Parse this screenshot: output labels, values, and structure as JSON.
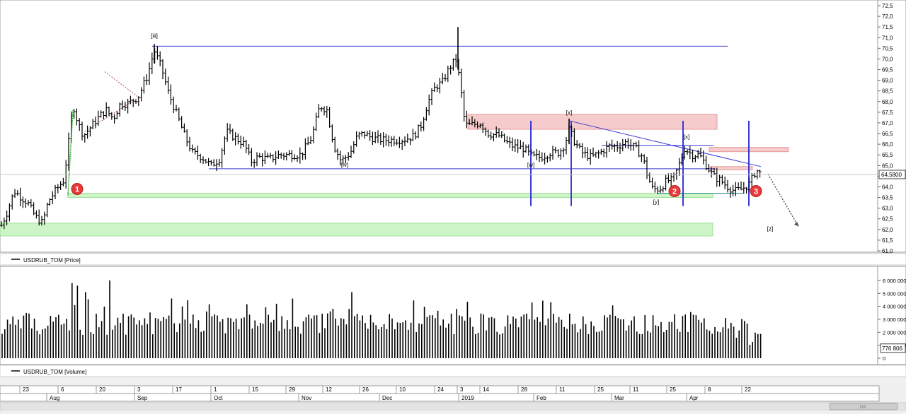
{
  "chart_data": {
    "type": "bar",
    "price_panel": {
      "series_label": "USDRUB_TOM [Price]",
      "y_ticks": [
        "72,5",
        "72,0",
        "71,5",
        "71,0",
        "70,5",
        "70,0",
        "69,5",
        "69,0",
        "68,5",
        "68,0",
        "67,5",
        "67,0",
        "66,5",
        "66,0",
        "65,5",
        "65,0",
        "64,5",
        "64,0",
        "63,5",
        "63,0",
        "62,5",
        "62,0",
        "61,5",
        "61,0"
      ],
      "ylim": [
        61.0,
        72.5
      ],
      "last_price_label": "64,5800",
      "last_price": 64.58,
      "wave_labels": [
        {
          "text": "[iii]",
          "x": 218,
          "price": 71.0
        },
        {
          "text": "[iv]",
          "x": 487,
          "price": 64.95
        },
        {
          "text": "[w]",
          "x": 750,
          "price": 64.95
        },
        {
          "text": "[x]",
          "x": 804,
          "price": 67.4
        },
        {
          "text": "[x]",
          "x": 970,
          "price": 66.25
        },
        {
          "text": "[y]",
          "x": 927,
          "price": 63.2
        },
        {
          "text": "[z]",
          "x": 1088,
          "price": 61.95
        }
      ],
      "markers": [
        {
          "text": "1",
          "x": 109,
          "price": 63.9
        },
        {
          "text": "2",
          "x": 953,
          "price": 63.8
        },
        {
          "text": "3",
          "x": 1068,
          "price": 63.8
        }
      ],
      "highs_lows": {
        "peak": 71.5,
        "peak_label": "[iii]",
        "start": 62.1
      }
    },
    "volume_panel": {
      "series_label": "USDRUB_TOM [Volume]",
      "y_ticks": [
        "6 000 000",
        "5 000 000",
        "4 000 000",
        "3 000 000",
        "2 000 000",
        "1 000 000",
        "0"
      ],
      "ylim": [
        0,
        6800000
      ],
      "last_volume_label": "776 806"
    },
    "x_axis": {
      "day_ticks": [
        "23",
        "6",
        "20",
        "3",
        "17",
        "1",
        "15",
        "29",
        "12",
        "26",
        "10",
        "24",
        "3",
        "14",
        "28",
        "11",
        "25",
        "11",
        "25",
        "8",
        "22"
      ],
      "month_labels": [
        "Aug",
        "Sep",
        "Oct",
        "Nov",
        "Dec",
        "2019",
        "Feb",
        "Mar",
        "Apr"
      ]
    }
  }
}
